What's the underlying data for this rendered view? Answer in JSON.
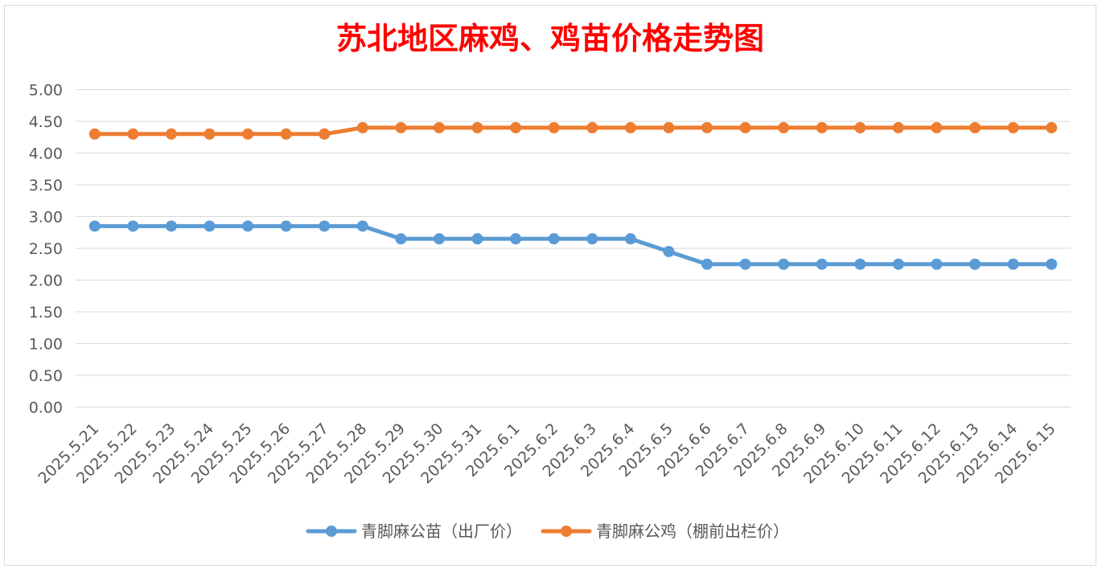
{
  "chart_data": {
    "type": "line",
    "title": "苏北地区麻鸡、鸡苗价格走势图",
    "xlabel": "",
    "ylabel": "",
    "ylim": [
      0,
      5
    ],
    "yticks": [
      "0.00",
      "0.50",
      "1.00",
      "1.50",
      "2.00",
      "2.50",
      "3.00",
      "3.50",
      "4.00",
      "4.50",
      "5.00"
    ],
    "grid": true,
    "legend_position": "bottom",
    "categories": [
      "2025.5.21",
      "2025.5.22",
      "2025.5.23",
      "2025.5.24",
      "2025.5.25",
      "2025.5.26",
      "2025.5.27",
      "2025.5.28",
      "2025.5.29",
      "2025.5.30",
      "2025.5.31",
      "2025.6.1",
      "2025.6.2",
      "2025.6.3",
      "2025.6.4",
      "2025.6.5",
      "2025.6.6",
      "2025.6.7",
      "2025.6.8",
      "2025.6.9",
      "2025.6.10",
      "2025.6.11",
      "2025.6.12",
      "2025.6.13",
      "2025.6.14",
      "2025.6.15"
    ],
    "series": [
      {
        "name": "青脚麻公苗（出厂价）",
        "color": "#5b9bd5",
        "values": [
          2.85,
          2.85,
          2.85,
          2.85,
          2.85,
          2.85,
          2.85,
          2.85,
          2.65,
          2.65,
          2.65,
          2.65,
          2.65,
          2.65,
          2.65,
          2.45,
          2.25,
          2.25,
          2.25,
          2.25,
          2.25,
          2.25,
          2.25,
          2.25,
          2.25,
          2.25
        ]
      },
      {
        "name": "青脚麻公鸡（棚前出栏价）",
        "color": "#ed7d31",
        "values": [
          4.3,
          4.3,
          4.3,
          4.3,
          4.3,
          4.3,
          4.3,
          4.4,
          4.4,
          4.4,
          4.4,
          4.4,
          4.4,
          4.4,
          4.4,
          4.4,
          4.4,
          4.4,
          4.4,
          4.4,
          4.4,
          4.4,
          4.4,
          4.4,
          4.4,
          4.4
        ]
      }
    ],
    "colors": {
      "title": "#ff0000",
      "gridline": "#d9d9d9",
      "axis_text": "#595959"
    }
  }
}
